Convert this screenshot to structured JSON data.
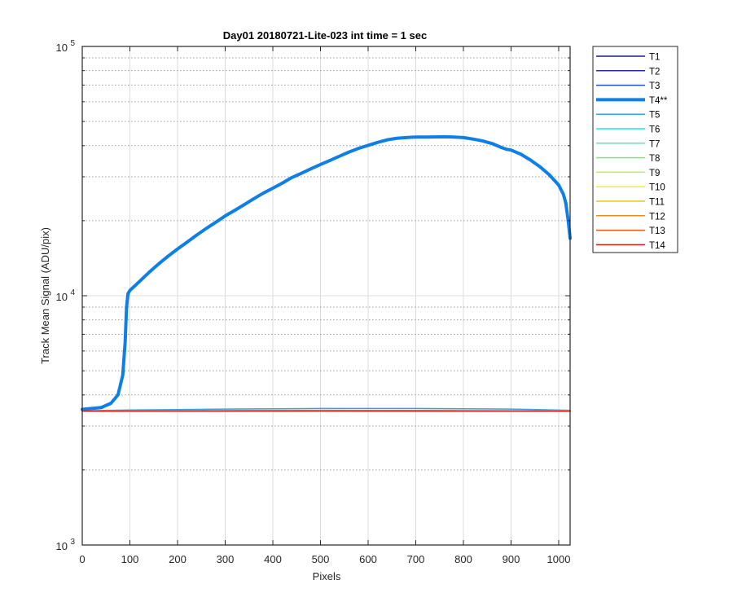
{
  "chart_data": {
    "type": "line",
    "title": "Day01 20180721-Lite-023 int time = 1 sec",
    "xlabel": "Pixels",
    "ylabel": "Track Mean Signal (ADU/pix)",
    "xlim": [
      0,
      1024
    ],
    "ylim": [
      1000,
      100000
    ],
    "yscale": "log",
    "grid": true,
    "legend_position": "outside-top-right",
    "x_ticks": [
      0,
      100,
      200,
      300,
      400,
      500,
      600,
      700,
      800,
      900,
      1000
    ],
    "y_ticks": [
      {
        "value": 1000,
        "base": "10",
        "exponent": "3"
      },
      {
        "value": 10000,
        "base": "10",
        "exponent": "4"
      },
      {
        "value": 100000,
        "base": "10",
        "exponent": "5"
      }
    ],
    "series": [
      {
        "name": "T1",
        "color": "#1a1a8a",
        "width": 1.5,
        "profile": "flat",
        "x": [
          0,
          512,
          1024
        ],
        "y": [
          3450,
          3460,
          3450
        ]
      },
      {
        "name": "T2",
        "color": "#1c2fa8",
        "width": 1.5,
        "profile": "flat",
        "x": [
          0,
          512,
          1024
        ],
        "y": [
          3450,
          3460,
          3450
        ]
      },
      {
        "name": "T3",
        "color": "#1f4fd0",
        "width": 1.5,
        "profile": "flat",
        "x": [
          0,
          512,
          1024
        ],
        "y": [
          3450,
          3460,
          3450
        ]
      },
      {
        "name": "T4**",
        "color": "#0f7fe8",
        "width": 4,
        "profile": "main",
        "x": [
          0,
          40,
          60,
          75,
          85,
          90,
          93,
          96,
          100,
          120,
          140,
          160,
          180,
          200,
          220,
          240,
          260,
          280,
          300,
          320,
          340,
          360,
          380,
          400,
          420,
          440,
          460,
          480,
          500,
          520,
          540,
          560,
          580,
          600,
          620,
          640,
          660,
          680,
          700,
          720,
          740,
          760,
          780,
          800,
          820,
          840,
          860,
          880,
          890,
          900,
          920,
          940,
          960,
          980,
          1000,
          1010,
          1015,
          1020,
          1024
        ],
        "y": [
          3500,
          3560,
          3700,
          4000,
          4800,
          6500,
          9000,
          10200,
          10500,
          11400,
          12400,
          13400,
          14400,
          15400,
          16400,
          17500,
          18600,
          19700,
          20900,
          22000,
          23200,
          24500,
          25800,
          27000,
          28300,
          29800,
          31000,
          32300,
          33600,
          34900,
          36300,
          37700,
          39000,
          40100,
          41200,
          42200,
          42800,
          43100,
          43300,
          43300,
          43350,
          43400,
          43300,
          43100,
          42500,
          41800,
          40800,
          39300,
          38700,
          38400,
          37000,
          35100,
          33000,
          30600,
          27800,
          25500,
          23500,
          20000,
          17000
        ]
      },
      {
        "name": "T5",
        "color": "#2aa8e6",
        "width": 1.5,
        "profile": "arch",
        "x": [
          0,
          100,
          300,
          500,
          700,
          900,
          1024
        ],
        "y": [
          3460,
          3480,
          3510,
          3530,
          3530,
          3510,
          3470
        ]
      },
      {
        "name": "T6",
        "color": "#1ee8e0",
        "width": 1.5,
        "profile": "flat",
        "x": [
          0,
          512,
          1024
        ],
        "y": [
          3455,
          3470,
          3455
        ]
      },
      {
        "name": "T7",
        "color": "#5fe0c0",
        "width": 1.5,
        "profile": "flat",
        "x": [
          0,
          512,
          1024
        ],
        "y": [
          3452,
          3462,
          3452
        ]
      },
      {
        "name": "T8",
        "color": "#7ee87a",
        "width": 1.5,
        "profile": "flat",
        "x": [
          0,
          512,
          1024
        ],
        "y": [
          3450,
          3458,
          3450
        ]
      },
      {
        "name": "T9",
        "color": "#bfee4a",
        "width": 1.5,
        "profile": "flat",
        "x": [
          0,
          512,
          1024
        ],
        "y": [
          3448,
          3455,
          3448
        ]
      },
      {
        "name": "T10",
        "color": "#f5ee2a",
        "width": 1.5,
        "profile": "flat",
        "x": [
          0,
          512,
          1024
        ],
        "y": [
          3447,
          3453,
          3447
        ]
      },
      {
        "name": "T11",
        "color": "#f0c020",
        "width": 1.5,
        "profile": "flat",
        "x": [
          0,
          512,
          1024
        ],
        "y": [
          3446,
          3452,
          3446
        ]
      },
      {
        "name": "T12",
        "color": "#f08a20",
        "width": 1.5,
        "profile": "flat",
        "x": [
          0,
          512,
          1024
        ],
        "y": [
          3445,
          3450,
          3445
        ]
      },
      {
        "name": "T13",
        "color": "#ea5a18",
        "width": 1.5,
        "profile": "flat",
        "x": [
          0,
          512,
          1024
        ],
        "y": [
          3444,
          3449,
          3444
        ]
      },
      {
        "name": "T14",
        "color": "#d81a10",
        "width": 1.5,
        "profile": "flat",
        "x": [
          0,
          512,
          1024
        ],
        "y": [
          3443,
          3448,
          3443
        ]
      }
    ]
  }
}
